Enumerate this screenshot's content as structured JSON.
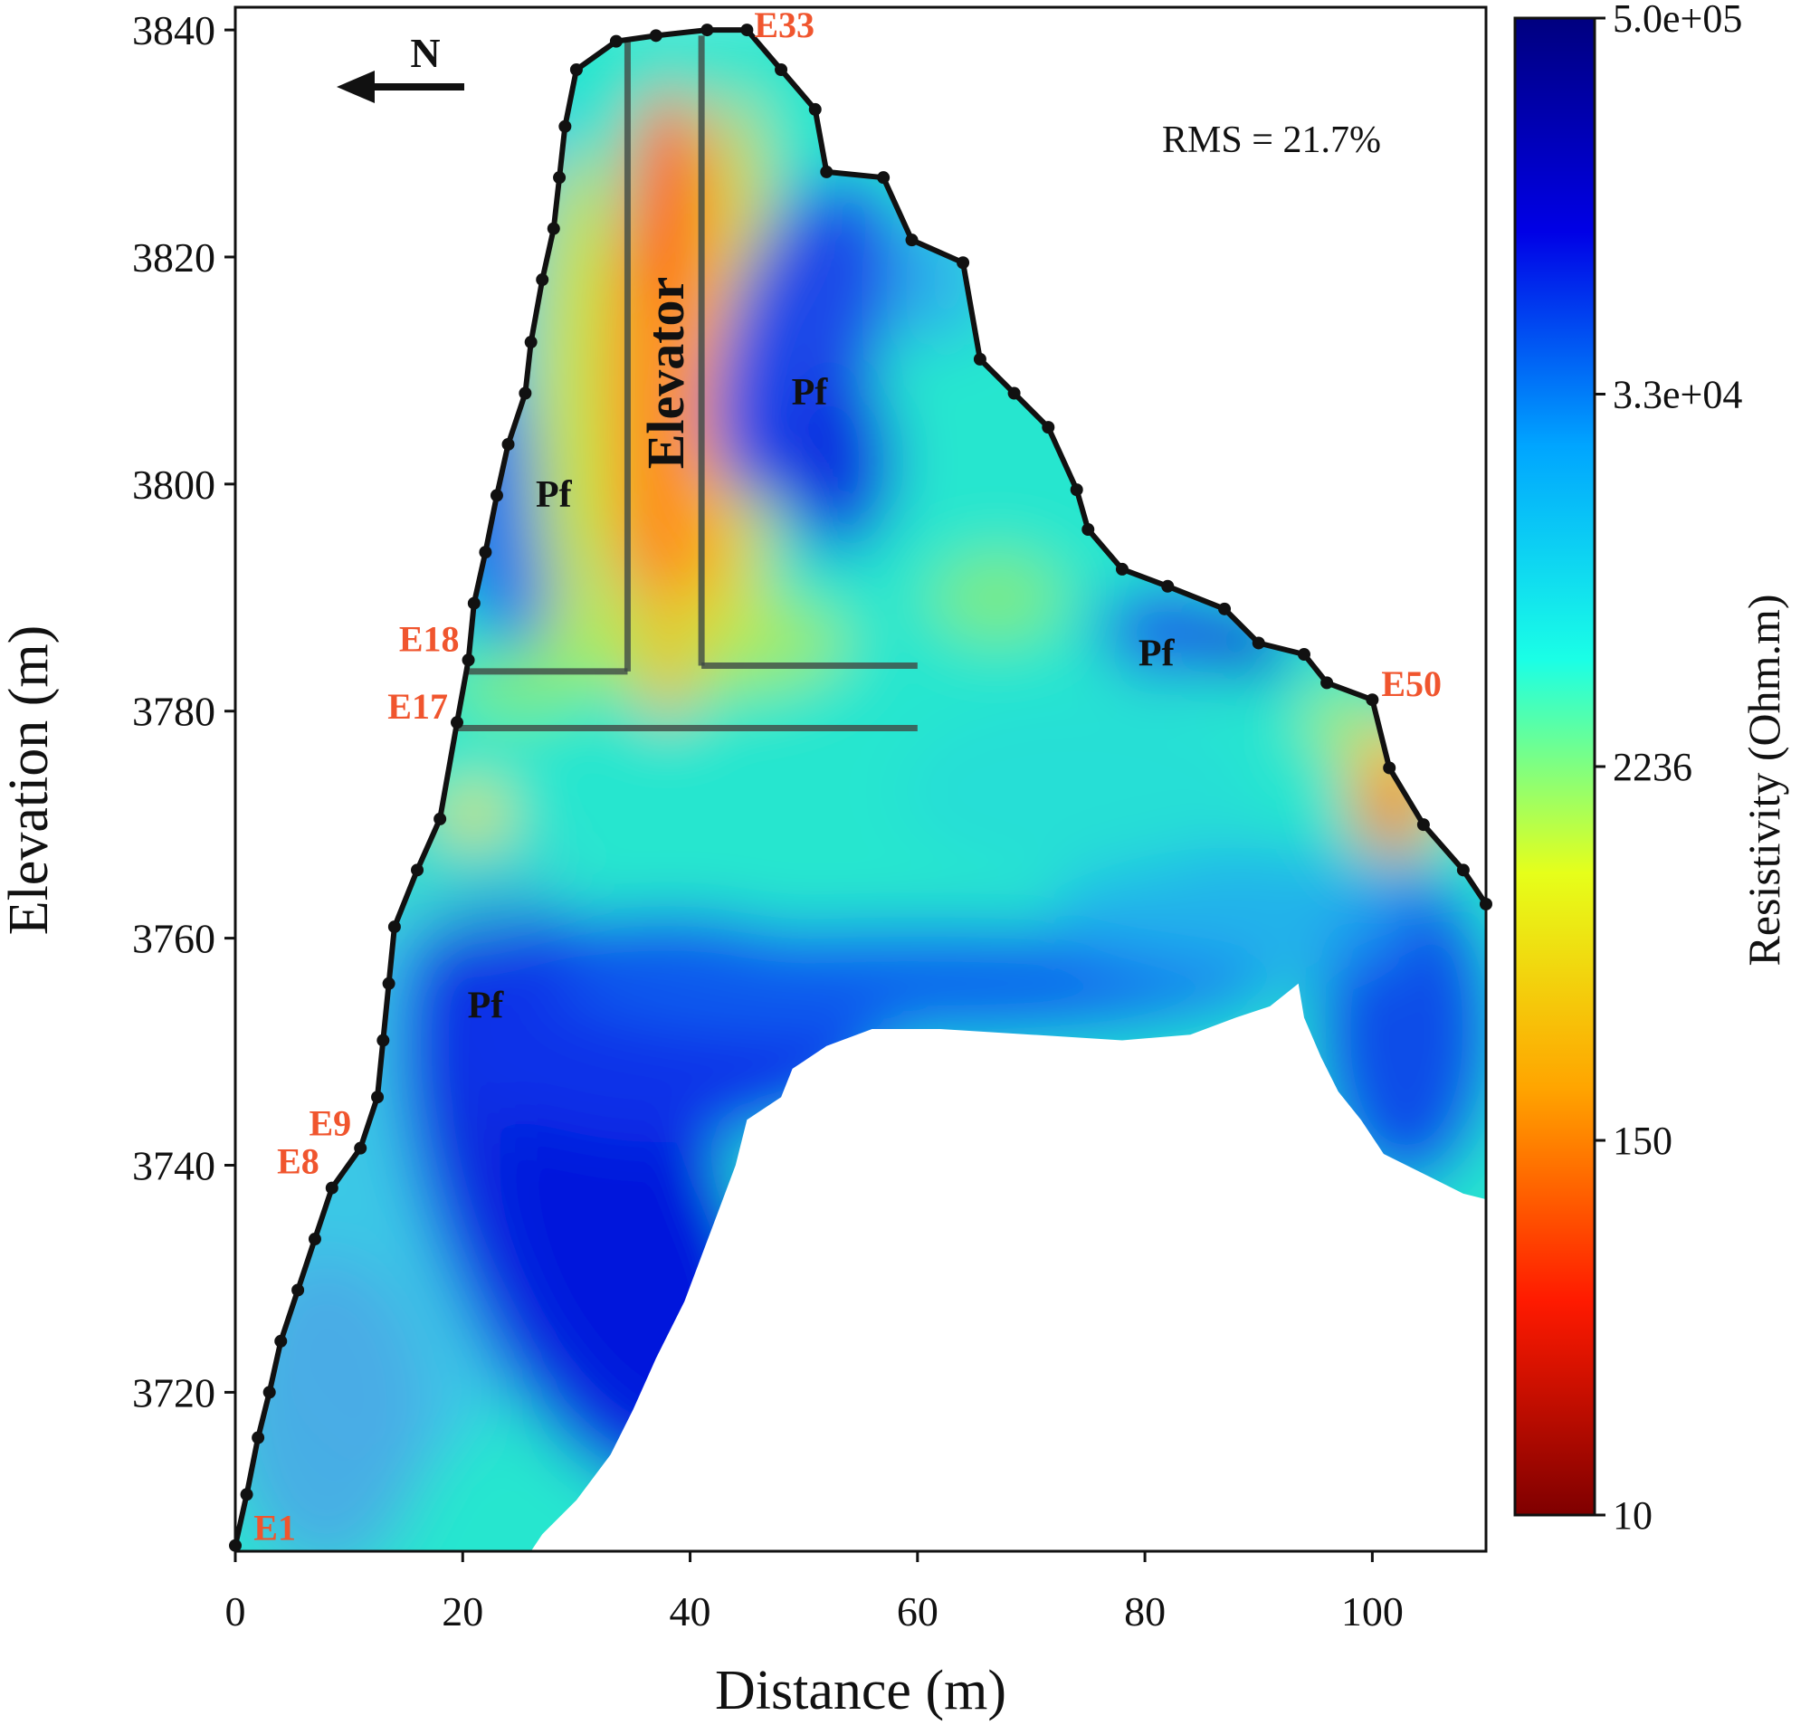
{
  "chart_data": {
    "type": "heatmap",
    "title": "",
    "xlabel": "Distance (m)",
    "ylabel": "Elevation (m)",
    "xlim": [
      0,
      110
    ],
    "ylim": [
      3706,
      3842
    ],
    "x_ticks": [
      "0",
      "20",
      "40",
      "60",
      "80",
      "100"
    ],
    "y_ticks": [
      "3720",
      "3740",
      "3760",
      "3780",
      "3800",
      "3820",
      "3840"
    ],
    "x_tick_values": [
      0,
      20,
      40,
      60,
      80,
      100
    ],
    "y_tick_values": [
      3720,
      3740,
      3760,
      3780,
      3800,
      3820,
      3840
    ],
    "colorbar": {
      "label": "Resistivity (Ohm.m)",
      "scale": "log",
      "range": [
        10,
        500000
      ],
      "ticks": [
        "5.0e+05",
        "3.3e+04",
        "2236",
        "150",
        "10"
      ],
      "tick_values": [
        500000,
        33000,
        2236,
        150,
        10
      ],
      "colormap": [
        "#7f0000",
        "#ff1a00",
        "#ffa500",
        "#e6ff1a",
        "#1affe6",
        "#00a5ff",
        "#0000e6",
        "#00007f"
      ]
    },
    "annotations": {
      "rms": "RMS = 21.7%",
      "north": "N",
      "elevator": "Elevator",
      "permafrost": [
        {
          "text": "Pf",
          "x": 28,
          "y": 3798
        },
        {
          "text": "Pf",
          "x": 50.5,
          "y": 3807
        },
        {
          "text": "Pf",
          "x": 81,
          "y": 3784
        },
        {
          "text": "Pf",
          "x": 22,
          "y": 3753
        }
      ]
    },
    "electrode_labels": [
      {
        "text": "E33",
        "x": 45,
        "y": 3840
      },
      {
        "text": "E18",
        "x": 20.5,
        "y": 3784.5
      },
      {
        "text": "E17",
        "x": 19.5,
        "y": 3779.5
      },
      {
        "text": "E50",
        "x": 100,
        "y": 3781
      },
      {
        "text": "E9",
        "x": 11,
        "y": 3742
      },
      {
        "text": "E8",
        "x": 8.5,
        "y": 3738.5
      },
      {
        "text": "E1",
        "x": 0.5,
        "y": 3706.5
      }
    ],
    "topography": [
      [
        0,
        3706.5
      ],
      [
        1,
        3711
      ],
      [
        2,
        3716
      ],
      [
        3,
        3720
      ],
      [
        4,
        3724.5
      ],
      [
        5.5,
        3729
      ],
      [
        7,
        3733.5
      ],
      [
        8.5,
        3738
      ],
      [
        11,
        3741.5
      ],
      [
        12.5,
        3746
      ],
      [
        13,
        3751
      ],
      [
        13.5,
        3756
      ],
      [
        14,
        3761
      ],
      [
        16,
        3766
      ],
      [
        18,
        3770.5
      ],
      [
        19.5,
        3779
      ],
      [
        20.5,
        3784.5
      ],
      [
        21,
        3789.5
      ],
      [
        22,
        3794
      ],
      [
        23,
        3799
      ],
      [
        24,
        3803.5
      ],
      [
        25.5,
        3808
      ],
      [
        26,
        3812.5
      ],
      [
        27,
        3818
      ],
      [
        28,
        3822.5
      ],
      [
        28.5,
        3827
      ],
      [
        29,
        3831.5
      ],
      [
        30,
        3836.5
      ],
      [
        33.5,
        3839
      ],
      [
        37,
        3839.5
      ],
      [
        41.5,
        3840
      ],
      [
        45,
        3840
      ],
      [
        48,
        3836.5
      ],
      [
        51,
        3833
      ],
      [
        52,
        3827.5
      ],
      [
        57,
        3827
      ],
      [
        59.5,
        3821.5
      ],
      [
        64,
        3819.5
      ],
      [
        65.5,
        3811
      ],
      [
        68.5,
        3808
      ],
      [
        71.5,
        3805
      ],
      [
        74,
        3799.5
      ],
      [
        75,
        3796
      ],
      [
        78,
        3792.5
      ],
      [
        82,
        3791
      ],
      [
        87,
        3789
      ],
      [
        90,
        3786
      ],
      [
        94,
        3785
      ],
      [
        96,
        3782.5
      ],
      [
        100,
        3781
      ],
      [
        101.5,
        3775
      ],
      [
        104.5,
        3770
      ],
      [
        108,
        3766
      ],
      [
        110,
        3763
      ]
    ],
    "structures": {
      "elevator_shaft": [
        [
          34.5,
          3839
        ],
        [
          34.5,
          3783.5
        ],
        [
          41,
          3839.5
        ],
        [
          41,
          3784
        ]
      ],
      "tunnels": [
        [
          20.5,
          3783.5,
          60,
          3784
        ],
        [
          19.5,
          3778.5,
          60,
          3778.5
        ]
      ]
    },
    "grid": false,
    "legend": "colorbar-right"
  }
}
